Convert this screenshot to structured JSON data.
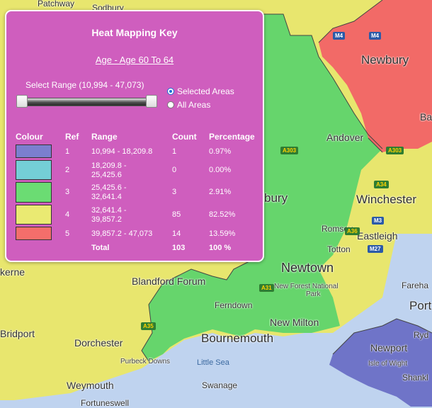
{
  "map": {
    "colors": {
      "sea": "#bfd3ef",
      "band3": "#66d56c",
      "band4": "#e8e66e",
      "band5": "#f26a67",
      "band1": "#6f74c8"
    },
    "places": [
      {
        "id": "patchway",
        "text": "Patchway"
      },
      {
        "id": "sodbury",
        "text": "Sodbury"
      },
      {
        "id": "newbury",
        "text": "Newbury"
      },
      {
        "id": "bas",
        "text": "Bas"
      },
      {
        "id": "andover",
        "text": "Andover"
      },
      {
        "id": "winchester",
        "text": "Winchester"
      },
      {
        "id": "bury",
        "text": "bury"
      },
      {
        "id": "romsey",
        "text": "Romsey"
      },
      {
        "id": "eastleigh",
        "text": "Eastleigh"
      },
      {
        "id": "totton",
        "text": "Totton"
      },
      {
        "id": "newtown",
        "text": "Newtown"
      },
      {
        "id": "new-forest",
        "text": "New Forest National"
      },
      {
        "id": "park",
        "text": "Park"
      },
      {
        "id": "kerne",
        "text": "kerne"
      },
      {
        "id": "blandford",
        "text": "Blandford Forum"
      },
      {
        "id": "ferndown",
        "text": "Ferndown"
      },
      {
        "id": "new-milton",
        "text": "New Milton"
      },
      {
        "id": "fareha",
        "text": "Fareha"
      },
      {
        "id": "port",
        "text": "Port"
      },
      {
        "id": "bridport",
        "text": "Bridport"
      },
      {
        "id": "dorchester",
        "text": "Dorchester"
      },
      {
        "id": "bournemouth",
        "text": "Bournemouth"
      },
      {
        "id": "ryd",
        "text": "Ryd"
      },
      {
        "id": "newport",
        "text": "Newport"
      },
      {
        "id": "purbeck",
        "text": "Purbeck Downs"
      },
      {
        "id": "little-sea",
        "text": "Little Sea"
      },
      {
        "id": "isle-of-wight",
        "text": "Isle of Wight"
      },
      {
        "id": "weymouth",
        "text": "Weymouth"
      },
      {
        "id": "swanage",
        "text": "Swanage"
      },
      {
        "id": "shankl",
        "text": "Shankl"
      },
      {
        "id": "fortuneswell",
        "text": "Fortuneswell"
      }
    ],
    "roads": [
      {
        "id": "m4-a",
        "text": "M4"
      },
      {
        "id": "m4-b",
        "text": "M4"
      },
      {
        "id": "a303-a",
        "text": "A303"
      },
      {
        "id": "a303-b",
        "text": "A303"
      },
      {
        "id": "a34",
        "text": "A34"
      },
      {
        "id": "m3",
        "text": "M3"
      },
      {
        "id": "a36",
        "text": "A36"
      },
      {
        "id": "m27",
        "text": "M27"
      },
      {
        "id": "a31",
        "text": "A31"
      },
      {
        "id": "a35",
        "text": "A35"
      }
    ]
  },
  "key": {
    "title": "Heat Mapping Key",
    "subtitle": "Age - Age 60 To 64",
    "range_label": "Select Range (10,994 - 47,073)",
    "options": {
      "selected_areas": "Selected Areas",
      "all_areas": "All Areas",
      "checked": "selected_areas"
    },
    "columns": {
      "colour": "Colour",
      "ref": "Ref",
      "range": "Range",
      "count": "Count",
      "percentage": "Percentage"
    },
    "rows": [
      {
        "color": "#7b7fcf",
        "ref": "1",
        "range_line1": "10,994 - 18,209.8",
        "range_line2": "",
        "count": "1",
        "percentage": "0.97%"
      },
      {
        "color": "#74cfd6",
        "ref": "2",
        "range_line1": "18,209.8 -",
        "range_line2": "25,425.6",
        "count": "0",
        "percentage": "0.00%"
      },
      {
        "color": "#6bdc73",
        "ref": "3",
        "range_line1": "25,425.6 -",
        "range_line2": "32,641.4",
        "count": "3",
        "percentage": "2.91%"
      },
      {
        "color": "#eaea72",
        "ref": "4",
        "range_line1": "32,641.4 -",
        "range_line2": "39,857.2",
        "count": "85",
        "percentage": "82.52%"
      },
      {
        "color": "#f46e6b",
        "ref": "5",
        "range_line1": "39,857.2 - 47,073",
        "range_line2": "",
        "count": "14",
        "percentage": "13.59%"
      }
    ],
    "total": {
      "label": "Total",
      "count": "103",
      "percentage": "100 %"
    }
  }
}
